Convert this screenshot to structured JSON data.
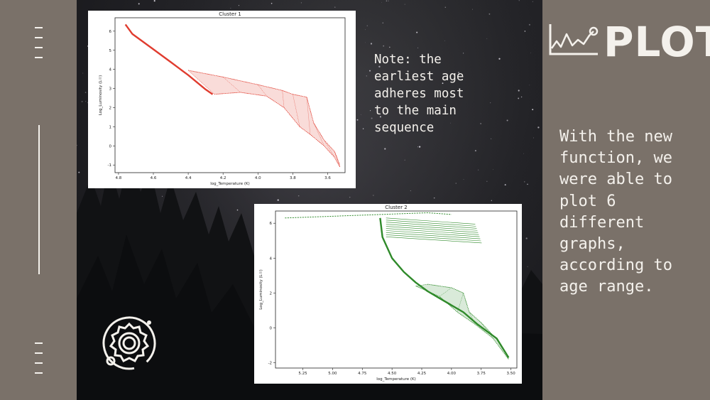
{
  "header": {
    "title": "PLOT"
  },
  "icons": {
    "plot": "line-chart-icon",
    "planet": "planet-orbit-icon"
  },
  "note": {
    "text": "Note: the\nearliest age\nadheres most\nto the main\nsequence"
  },
  "description": {
    "text": "With the new\nfunction, we\nwere able to\nplot 6\ndifferent\ngraphs,\naccording to\nage range."
  },
  "colors": {
    "panel": "#7a7169",
    "text": "#f4f1ec",
    "cluster1": "#e03c2f",
    "cluster2": "#2f8a2a"
  },
  "chart_data": [
    {
      "type": "scatter",
      "title": "Cluster 1",
      "xlabel": "log_Temperature (K)",
      "ylabel": "Log_Luminosity (L☉)",
      "xlim": [
        4.82,
        3.5
      ],
      "ylim": [
        -1.4,
        6.7
      ],
      "x_ticks": [
        4.8,
        4.6,
        4.4,
        4.2,
        4.0,
        3.8,
        3.6
      ],
      "y_ticks": [
        -1,
        0,
        1,
        2,
        3,
        4,
        5,
        6
      ],
      "color": "#e03c2f",
      "main_sequence": [
        [
          4.76,
          6.35
        ],
        [
          4.72,
          5.85
        ],
        [
          4.6,
          5.05
        ],
        [
          4.5,
          4.38
        ],
        [
          4.4,
          3.7
        ],
        [
          4.3,
          2.95
        ],
        [
          4.26,
          2.7
        ]
      ],
      "band_upper": [
        [
          4.4,
          3.95
        ],
        [
          4.2,
          3.6
        ],
        [
          4.0,
          3.2
        ],
        [
          3.86,
          2.9
        ],
        [
          3.8,
          2.7
        ],
        [
          3.72,
          2.55
        ],
        [
          3.68,
          1.2
        ],
        [
          3.62,
          0.3
        ],
        [
          3.56,
          -0.3
        ],
        [
          3.53,
          -1.0
        ]
      ],
      "band_lower": [
        [
          4.25,
          2.7
        ],
        [
          4.1,
          2.8
        ],
        [
          3.95,
          2.6
        ],
        [
          3.85,
          2.0
        ],
        [
          3.76,
          1.0
        ],
        [
          3.7,
          0.6
        ],
        [
          3.62,
          0.0
        ],
        [
          3.56,
          -0.6
        ],
        [
          3.53,
          -1.1
        ]
      ]
    },
    {
      "type": "scatter",
      "title": "Cluster 2",
      "xlabel": "log_Temperature (K)",
      "ylabel": "Log_Luminosity (L☉)",
      "xlim": [
        5.48,
        3.45
      ],
      "ylim": [
        -2.3,
        6.7
      ],
      "x_ticks": [
        5.25,
        5.0,
        4.75,
        4.5,
        4.25,
        4.0,
        3.75,
        3.5
      ],
      "y_ticks": [
        -2,
        0,
        2,
        4,
        6
      ],
      "color": "#2f8a2a",
      "main_sequence": [
        [
          4.6,
          6.3
        ],
        [
          4.58,
          5.2
        ],
        [
          4.5,
          4.0
        ],
        [
          4.4,
          3.2
        ],
        [
          4.3,
          2.6
        ],
        [
          4.2,
          2.1
        ],
        [
          4.1,
          1.7
        ],
        [
          3.9,
          0.9
        ],
        [
          3.78,
          0.2
        ],
        [
          3.62,
          -0.6
        ],
        [
          3.52,
          -1.7
        ]
      ],
      "top_tracks": [
        [
          5.4,
          6.3
        ],
        [
          5.2,
          6.35
        ],
        [
          5.0,
          6.4
        ],
        [
          4.8,
          6.45
        ],
        [
          4.6,
          6.5
        ],
        [
          4.4,
          6.55
        ],
        [
          4.2,
          6.6
        ],
        [
          4.0,
          6.5
        ]
      ],
      "band_upper": [
        [
          4.2,
          2.5
        ],
        [
          4.0,
          2.3
        ],
        [
          3.9,
          2.0
        ],
        [
          3.85,
          0.9
        ],
        [
          3.75,
          0.3
        ],
        [
          3.6,
          -0.8
        ],
        [
          3.52,
          -1.7
        ]
      ],
      "band_lower": [
        [
          4.3,
          2.4
        ],
        [
          4.1,
          1.8
        ],
        [
          3.95,
          0.9
        ],
        [
          3.8,
          0.2
        ],
        [
          3.65,
          -0.6
        ],
        [
          3.52,
          -1.8
        ]
      ]
    }
  ]
}
